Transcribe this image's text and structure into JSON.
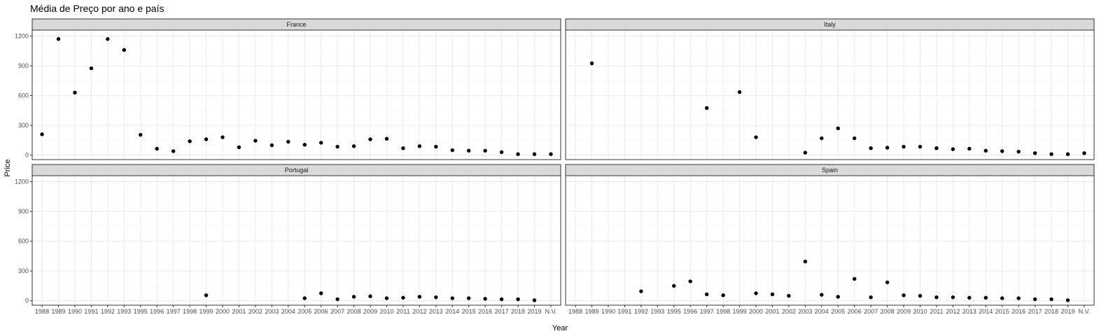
{
  "chart_data": {
    "type": "scatter",
    "title": "Média de Preço por ano e país",
    "xlabel": "Year",
    "ylabel": "Price",
    "categories": [
      "1988",
      "1989",
      "1990",
      "1991",
      "1992",
      "1993",
      "1995",
      "1996",
      "1997",
      "1998",
      "1999",
      "2000",
      "2001",
      "2002",
      "2003",
      "2004",
      "2005",
      "2006",
      "2007",
      "2008",
      "2009",
      "2010",
      "2011",
      "2012",
      "2013",
      "2014",
      "2015",
      "2016",
      "2017",
      "2018",
      "2019",
      "N.V."
    ],
    "yticks": [
      0,
      300,
      600,
      900,
      1200
    ],
    "ylim": [
      -45,
      1260
    ],
    "grid": true,
    "point_color": "#000000",
    "panels": [
      {
        "name": "France",
        "points": [
          {
            "x": "1988",
            "y": 210
          },
          {
            "x": "1989",
            "y": 1170
          },
          {
            "x": "1990",
            "y": 630
          },
          {
            "x": "1991",
            "y": 875
          },
          {
            "x": "1992",
            "y": 1170
          },
          {
            "x": "1993",
            "y": 1060
          },
          {
            "x": "1995",
            "y": 205
          },
          {
            "x": "1996",
            "y": 65
          },
          {
            "x": "1997",
            "y": 40
          },
          {
            "x": "1998",
            "y": 140
          },
          {
            "x": "1999",
            "y": 160
          },
          {
            "x": "2000",
            "y": 180
          },
          {
            "x": "2001",
            "y": 80
          },
          {
            "x": "2002",
            "y": 145
          },
          {
            "x": "2003",
            "y": 100
          },
          {
            "x": "2004",
            "y": 135
          },
          {
            "x": "2005",
            "y": 105
          },
          {
            "x": "2006",
            "y": 125
          },
          {
            "x": "2007",
            "y": 85
          },
          {
            "x": "2008",
            "y": 90
          },
          {
            "x": "2009",
            "y": 160
          },
          {
            "x": "2010",
            "y": 165
          },
          {
            "x": "2011",
            "y": 70
          },
          {
            "x": "2012",
            "y": 90
          },
          {
            "x": "2013",
            "y": 85
          },
          {
            "x": "2014",
            "y": 50
          },
          {
            "x": "2015",
            "y": 45
          },
          {
            "x": "2016",
            "y": 45
          },
          {
            "x": "2017",
            "y": 30
          },
          {
            "x": "2018",
            "y": 10
          },
          {
            "x": "2019",
            "y": 10
          },
          {
            "x": "N.V.",
            "y": 10
          }
        ]
      },
      {
        "name": "Italy",
        "points": [
          {
            "x": "1989",
            "y": 925
          },
          {
            "x": "1997",
            "y": 475
          },
          {
            "x": "1999",
            "y": 635
          },
          {
            "x": "2000",
            "y": 180
          },
          {
            "x": "2003",
            "y": 25
          },
          {
            "x": "2004",
            "y": 170
          },
          {
            "x": "2005",
            "y": 270
          },
          {
            "x": "2006",
            "y": 170
          },
          {
            "x": "2007",
            "y": 70
          },
          {
            "x": "2008",
            "y": 75
          },
          {
            "x": "2009",
            "y": 85
          },
          {
            "x": "2010",
            "y": 85
          },
          {
            "x": "2011",
            "y": 70
          },
          {
            "x": "2012",
            "y": 60
          },
          {
            "x": "2013",
            "y": 65
          },
          {
            "x": "2014",
            "y": 45
          },
          {
            "x": "2015",
            "y": 40
          },
          {
            "x": "2016",
            "y": 35
          },
          {
            "x": "2017",
            "y": 20
          },
          {
            "x": "2018",
            "y": 10
          },
          {
            "x": "2019",
            "y": 10
          },
          {
            "x": "N.V.",
            "y": 20
          }
        ]
      },
      {
        "name": "Portugal",
        "points": [
          {
            "x": "1999",
            "y": 55
          },
          {
            "x": "2005",
            "y": 25
          },
          {
            "x": "2006",
            "y": 75
          },
          {
            "x": "2007",
            "y": 15
          },
          {
            "x": "2008",
            "y": 40
          },
          {
            "x": "2009",
            "y": 45
          },
          {
            "x": "2010",
            "y": 25
          },
          {
            "x": "2011",
            "y": 30
          },
          {
            "x": "2012",
            "y": 40
          },
          {
            "x": "2013",
            "y": 35
          },
          {
            "x": "2014",
            "y": 25
          },
          {
            "x": "2015",
            "y": 25
          },
          {
            "x": "2016",
            "y": 20
          },
          {
            "x": "2017",
            "y": 15
          },
          {
            "x": "2018",
            "y": 15
          },
          {
            "x": "2019",
            "y": 5
          }
        ]
      },
      {
        "name": "Spain",
        "points": [
          {
            "x": "1992",
            "y": 95
          },
          {
            "x": "1995",
            "y": 150
          },
          {
            "x": "1996",
            "y": 195
          },
          {
            "x": "1997",
            "y": 65
          },
          {
            "x": "1998",
            "y": 55
          },
          {
            "x": "2000",
            "y": 75
          },
          {
            "x": "2001",
            "y": 65
          },
          {
            "x": "2002",
            "y": 50
          },
          {
            "x": "2003",
            "y": 395
          },
          {
            "x": "2004",
            "y": 60
          },
          {
            "x": "2005",
            "y": 40
          },
          {
            "x": "2006",
            "y": 220
          },
          {
            "x": "2007",
            "y": 35
          },
          {
            "x": "2008",
            "y": 185
          },
          {
            "x": "2009",
            "y": 55
          },
          {
            "x": "2010",
            "y": 50
          },
          {
            "x": "2011",
            "y": 35
          },
          {
            "x": "2012",
            "y": 35
          },
          {
            "x": "2013",
            "y": 30
          },
          {
            "x": "2014",
            "y": 30
          },
          {
            "x": "2015",
            "y": 25
          },
          {
            "x": "2016",
            "y": 25
          },
          {
            "x": "2017",
            "y": 15
          },
          {
            "x": "2018",
            "y": 15
          },
          {
            "x": "2019",
            "y": 5
          }
        ]
      }
    ]
  }
}
